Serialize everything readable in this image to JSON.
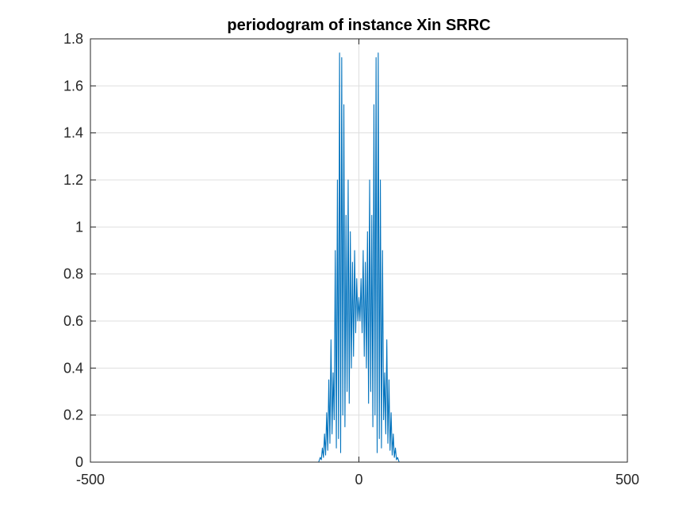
{
  "chart_data": {
    "type": "line",
    "title": "periodogram of instance Xin SRRC",
    "xlabel": "",
    "ylabel": "",
    "xlim": [
      -500,
      500
    ],
    "ylim": [
      0,
      1.8
    ],
    "x_ticks": [
      -500,
      0,
      500
    ],
    "x_tick_labels": [
      "-500",
      "0",
      "500"
    ],
    "y_ticks": [
      0,
      0.2,
      0.4,
      0.6,
      0.8,
      1,
      1.2,
      1.4,
      1.6,
      1.8
    ],
    "y_tick_labels": [
      "0",
      "0.2",
      "0.4",
      "0.6",
      "0.8",
      "1",
      "1.2",
      "1.4",
      "1.6",
      "1.8"
    ],
    "grid": true,
    "legend": "none",
    "colors": {
      "line": "#0072BD",
      "axes": "#262626",
      "grid": "#dfdfdf"
    },
    "series": [
      {
        "x": [
          -500,
          -75,
          -72,
          -70,
          -68,
          -66,
          -64,
          -62,
          -60,
          -58,
          -56,
          -54,
          -52,
          -50,
          -48,
          -46,
          -44,
          -42,
          -40,
          -38,
          -36,
          -34,
          -32,
          -30,
          -28,
          -26,
          -24,
          -22,
          -20,
          -18,
          -16,
          -14,
          -12,
          -10,
          -8,
          -6,
          -4,
          -2,
          0,
          2,
          4,
          6,
          8,
          10,
          12,
          14,
          16,
          18,
          20,
          22,
          24,
          26,
          28,
          30,
          32,
          34,
          36,
          38,
          40,
          42,
          44,
          46,
          48,
          50,
          52,
          54,
          56,
          58,
          60,
          62,
          64,
          66,
          68,
          70,
          72,
          75,
          500
        ],
        "y": [
          0,
          0,
          0.02,
          0.01,
          0.06,
          0.02,
          0.12,
          0.03,
          0.21,
          0.05,
          0.35,
          0.08,
          0.52,
          0.12,
          0.38,
          0.18,
          0.9,
          0.06,
          1.2,
          0.1,
          1.74,
          0.04,
          1.72,
          0.2,
          1.52,
          0.15,
          1.05,
          0.3,
          1.2,
          0.25,
          0.98,
          0.4,
          0.85,
          0.45,
          0.9,
          0.55,
          0.78,
          0.6,
          0.7,
          0.6,
          0.78,
          0.55,
          0.9,
          0.45,
          0.85,
          0.4,
          0.98,
          0.25,
          1.2,
          0.3,
          1.05,
          0.15,
          1.52,
          0.2,
          1.72,
          0.04,
          1.74,
          0.1,
          1.2,
          0.06,
          0.9,
          0.18,
          0.38,
          0.12,
          0.52,
          0.08,
          0.35,
          0.05,
          0.21,
          0.03,
          0.12,
          0.02,
          0.06,
          0.01,
          0.02,
          0,
          0
        ]
      }
    ]
  }
}
